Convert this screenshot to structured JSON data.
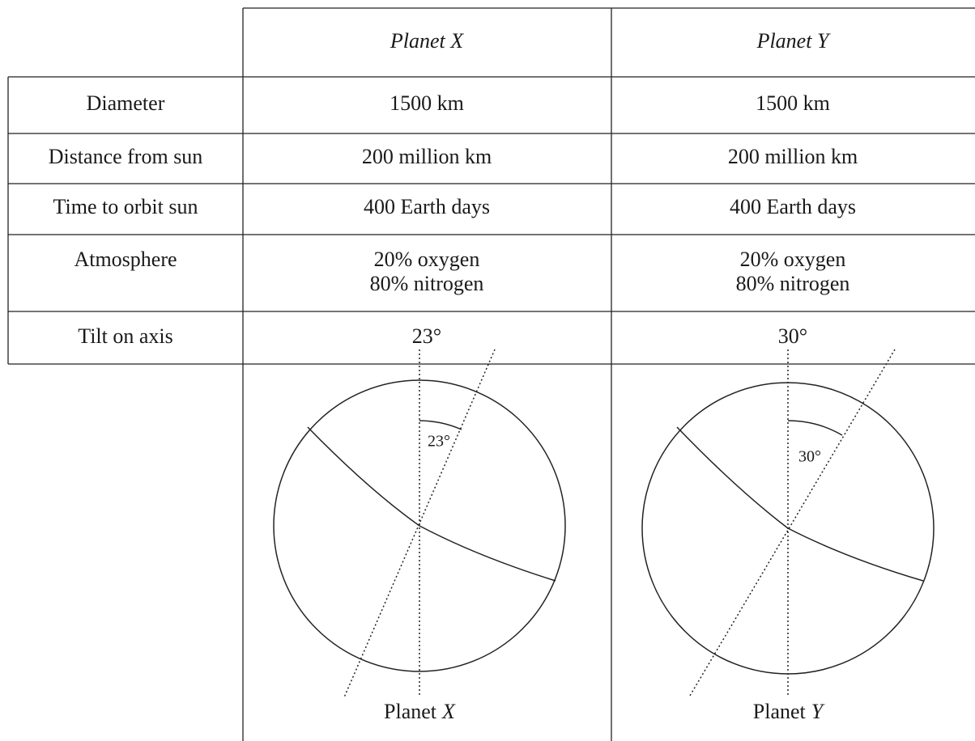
{
  "table": {
    "header": [
      "Planet X",
      "Planet Y"
    ],
    "rows": [
      {
        "label": "Diameter",
        "cells": [
          [
            "1500 km"
          ],
          [
            "1500 km"
          ]
        ]
      },
      {
        "label": "Distance from sun",
        "cells": [
          [
            "200 million km"
          ],
          [
            "200 million km"
          ]
        ]
      },
      {
        "label": "Time to orbit sun",
        "cells": [
          [
            "400 Earth days"
          ],
          [
            "400 Earth days"
          ]
        ]
      },
      {
        "label": "Atmosphere",
        "cells": [
          [
            "20% oxygen",
            "80% nitrogen"
          ],
          [
            "20% oxygen",
            "80% nitrogen"
          ]
        ]
      },
      {
        "label": "Tilt on axis",
        "cells": [
          [
            "23°"
          ],
          [
            "30°"
          ]
        ]
      }
    ]
  },
  "diagrams": [
    {
      "angle_label": "23°",
      "caption": {
        "word": "Planet",
        "letter": "X"
      }
    },
    {
      "angle_label": "30°",
      "caption": {
        "word": "Planet",
        "letter": "Y"
      }
    }
  ]
}
